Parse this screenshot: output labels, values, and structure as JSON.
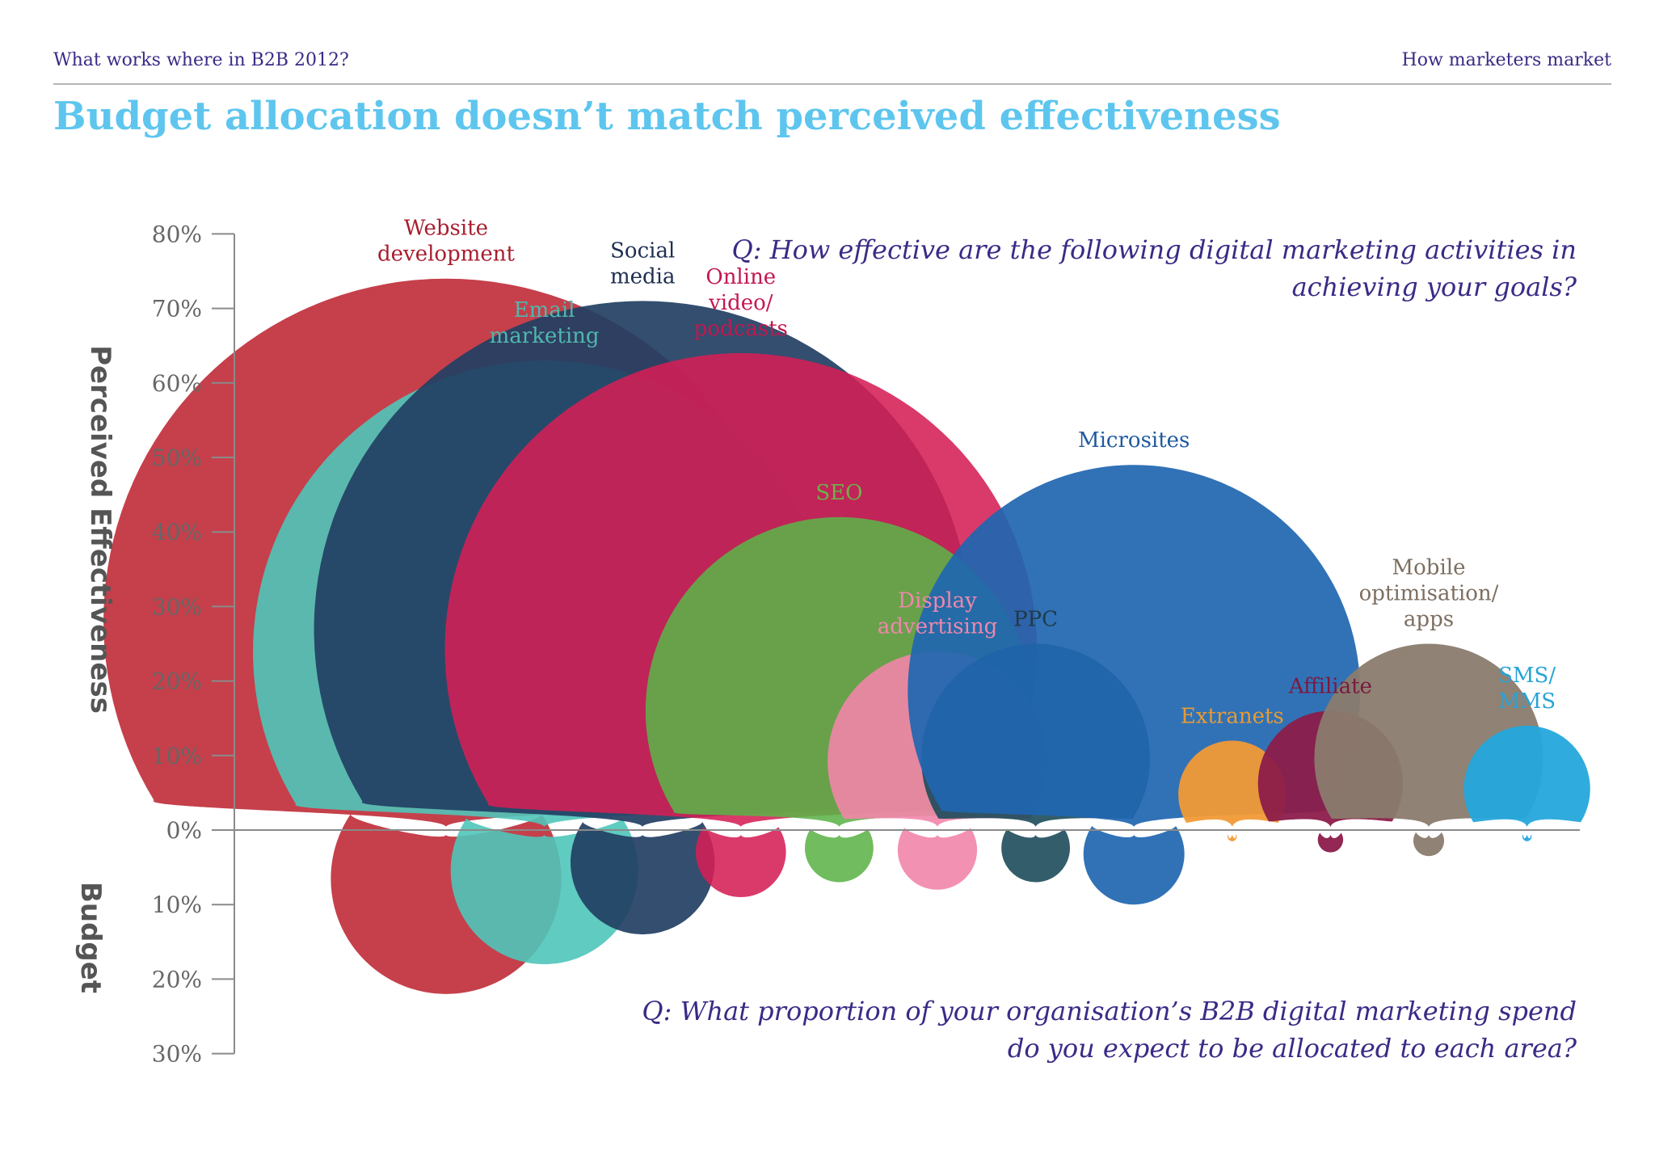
{
  "header": {
    "left": "What works where in B2B 2012?",
    "right": "How marketers market"
  },
  "title": "Budget allocation doesn’t match perceived effectiveness",
  "questions": {
    "effectiveness": "Q: How effective are the following digital marketing activities in achieving your goals?",
    "budget": "Q: What proportion of  your organisation’s B2B digital marketing spend do you expect to be allocated to each area?"
  },
  "chart_data": {
    "type": "bar",
    "title": "",
    "ylabel_top": "Perceived Effectiveness",
    "ylabel_bottom": "Budget",
    "yticks_top": [
      "80%",
      "70%",
      "60%",
      "50%",
      "40%",
      "30%",
      "20%",
      "10%",
      "0%"
    ],
    "yticks_bottom": [
      "10%",
      "20%",
      "30%"
    ],
    "ylim_top": [
      0,
      80
    ],
    "ylim_bottom": [
      0,
      30
    ],
    "grid": false,
    "categories": [
      "Website development",
      "Email marketing",
      "Social media",
      "Online video/ podcasts",
      "SEO",
      "Display advertising",
      "PPC",
      "Microsites",
      "Extranets",
      "Affiliate",
      "Mobile optimisation/ apps",
      "SMS/ MMS"
    ],
    "series": [
      {
        "name": "Perceived Effectiveness",
        "values": [
          74,
          63,
          71,
          64,
          42,
          24,
          25,
          49,
          12,
          16,
          25,
          14
        ]
      },
      {
        "name": "Budget",
        "values": [
          22,
          18,
          14,
          9,
          7,
          8,
          7,
          10,
          1.5,
          3,
          3.5,
          1.5
        ]
      }
    ],
    "colors": [
      "#c0303c",
      "#4fc5b9",
      "#223f63",
      "#d51f55",
      "#5cb348",
      "#f285aa",
      "#1d4b5a",
      "#1f66b0",
      "#f19a36",
      "#8c1c4a",
      "#8a7b6d",
      "#24a7dc"
    ],
    "opacities": [
      0.92,
      0.9,
      0.92,
      0.88,
      0.88,
      0.9,
      0.9,
      0.92,
      0.95,
      0.95,
      0.95,
      0.95
    ],
    "label_colors": [
      "#a81e2e",
      "#4fb8ad",
      "#1f2f4f",
      "#c4174f",
      "#6fb04a",
      "#ef87ad",
      "#1e3b49",
      "#1f5a9e",
      "#e99a33",
      "#7a1a40",
      "#7d6e60",
      "#27a4d6"
    ],
    "label_lines": [
      [
        "Website",
        "development"
      ],
      [
        "Email",
        "marketing"
      ],
      [
        "Social",
        "media"
      ],
      [
        "Online",
        "video/",
        "podcasts"
      ],
      [
        "SEO"
      ],
      [
        "Display",
        "advertising"
      ],
      [
        "PPC"
      ],
      [
        "Microsites"
      ],
      [
        "Extranets"
      ],
      [
        "Affiliate"
      ],
      [
        "Mobile",
        "optimisation/",
        "apps"
      ],
      [
        "SMS/",
        "MMS"
      ]
    ]
  }
}
